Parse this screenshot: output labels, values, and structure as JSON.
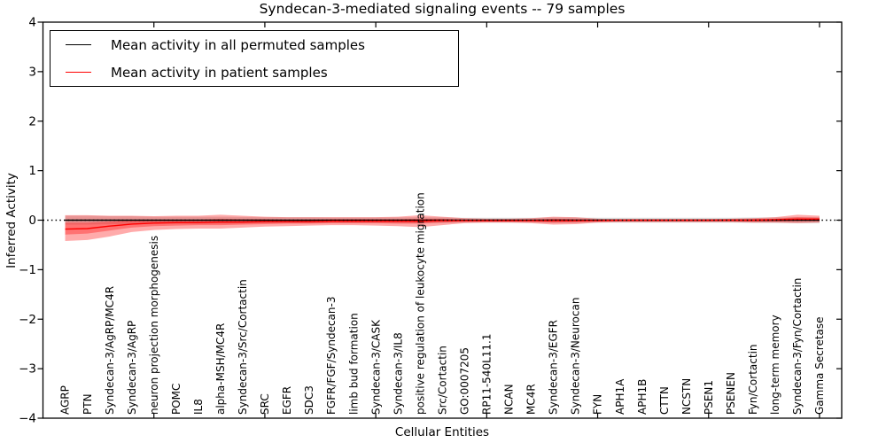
{
  "figure": {
    "title": "Syndecan-3-mediated signaling events -- 79 samples",
    "xlabel": "Cellular Entities",
    "ylabel": "Inferred Activity"
  },
  "legend": {
    "entries": [
      {
        "label": "Mean activity in all permuted samples",
        "color": "#000000"
      },
      {
        "label": "Mean activity in patient samples",
        "color": "#ff0000"
      }
    ]
  },
  "chart_data": {
    "type": "line",
    "title": "Syndecan-3-mediated signaling events -- 79 samples",
    "xlabel": "Cellular Entities",
    "ylabel": "Inferred Activity",
    "ylim": [
      -4,
      4
    ],
    "yticks": [
      4,
      3,
      2,
      1,
      0,
      -1,
      -2,
      -3,
      -4
    ],
    "grid": false,
    "legend_position": "upper left",
    "x_major_tick_every": 5,
    "zero_line": {
      "y": 0,
      "style": "dotted",
      "color": "#000000"
    },
    "categories": [
      "AGRP",
      "PTN",
      "Syndecan-3/AgRP/MC4R",
      "Syndecan-3/AgRP",
      "neuron projection morphogenesis",
      "POMC",
      "IL8",
      "alpha-MSH/MC4R",
      "Syndecan-3/Src/Cortactin",
      "SRC",
      "EGFR",
      "SDC3",
      "FGFR/FGF/Syndecan-3",
      "limb bud formation",
      "Syndecan-3/CASK",
      "Syndecan-3/IL8",
      "positive regulation of leukocyte migration",
      "Src/Cortactin",
      "GO:0007205",
      "RP11-540L11.1",
      "NCAN",
      "MC4R",
      "Syndecan-3/EGFR",
      "Syndecan-3/Neurocan",
      "FYN",
      "APH1A",
      "APH1B",
      "CTTN",
      "NCSTN",
      "PSEN1",
      "PSENEN",
      "Fyn/Cortactin",
      "long-term memory",
      "Syndecan-3/Fyn/Cortactin",
      "Gamma Secretase"
    ],
    "series": [
      {
        "name": "Mean activity in all permuted samples",
        "color": "#000000",
        "values": [
          0,
          0,
          0,
          0,
          0,
          0,
          0,
          0,
          0,
          0,
          0,
          0,
          0,
          0,
          0,
          0,
          0,
          0,
          0,
          0,
          0,
          0,
          0,
          0,
          0,
          0,
          0,
          0,
          0,
          0,
          0,
          0,
          0,
          0,
          0
        ]
      },
      {
        "name": "Mean activity in patient samples",
        "color": "#ff0000",
        "values": [
          -0.18,
          -0.17,
          -0.12,
          -0.08,
          -0.06,
          -0.05,
          -0.05,
          -0.04,
          -0.04,
          -0.03,
          -0.03,
          -0.03,
          -0.02,
          -0.02,
          -0.02,
          -0.02,
          -0.02,
          -0.01,
          -0.01,
          -0.01,
          -0.01,
          -0.01,
          -0.01,
          -0.01,
          -0.01,
          0,
          0,
          0,
          0,
          0,
          0,
          0,
          0.01,
          0.02,
          0.02
        ]
      }
    ],
    "bands": [
      {
        "name": "permuted-samples-band",
        "color": "#000000",
        "opacity": 0.13,
        "upper": [
          0.09,
          0.09,
          0.08,
          0.08,
          0.07,
          0.07,
          0.07,
          0.07,
          0.065,
          0.06,
          0.06,
          0.06,
          0.055,
          0.055,
          0.055,
          0.055,
          0.06,
          0.055,
          0.05,
          0.05,
          0.05,
          0.05,
          0.055,
          0.055,
          0.05,
          0.05,
          0.05,
          0.05,
          0.05,
          0.05,
          0.05,
          0.055,
          0.055,
          0.06,
          0.06
        ],
        "lower": [
          -0.09,
          -0.09,
          -0.08,
          -0.08,
          -0.07,
          -0.07,
          -0.07,
          -0.07,
          -0.065,
          -0.06,
          -0.06,
          -0.06,
          -0.055,
          -0.055,
          -0.055,
          -0.055,
          -0.06,
          -0.055,
          -0.05,
          -0.05,
          -0.05,
          -0.05,
          -0.055,
          -0.055,
          -0.05,
          -0.05,
          -0.05,
          -0.05,
          -0.05,
          -0.05,
          -0.05,
          -0.055,
          -0.055,
          -0.06,
          -0.06
        ]
      },
      {
        "name": "patient-samples-band-outer",
        "color": "#ff0000",
        "opacity": 0.33,
        "upper": [
          0.1,
          0.1,
          0.09,
          0.09,
          0.08,
          0.09,
          0.09,
          0.11,
          0.09,
          0.07,
          0.06,
          0.06,
          0.06,
          0.06,
          0.06,
          0.07,
          0.1,
          0.07,
          0.04,
          0.03,
          0.03,
          0.04,
          0.07,
          0.06,
          0.03,
          0.02,
          0.02,
          0.02,
          0.02,
          0.02,
          0.03,
          0.04,
          0.06,
          0.11,
          0.09
        ],
        "lower": [
          -0.42,
          -0.4,
          -0.33,
          -0.24,
          -0.2,
          -0.18,
          -0.17,
          -0.17,
          -0.15,
          -0.13,
          -0.12,
          -0.11,
          -0.1,
          -0.1,
          -0.11,
          -0.12,
          -0.14,
          -0.1,
          -0.06,
          -0.05,
          -0.05,
          -0.06,
          -0.09,
          -0.08,
          -0.05,
          -0.04,
          -0.04,
          -0.04,
          -0.04,
          -0.04,
          -0.04,
          -0.05,
          -0.05,
          -0.06,
          -0.05
        ]
      },
      {
        "name": "patient-samples-band-inner",
        "color": "#ff0000",
        "opacity": 0.33,
        "upper": [
          -0.05,
          -0.05,
          -0.03,
          0.0,
          0.0,
          0.01,
          0.01,
          0.03,
          0.02,
          0.02,
          0.01,
          0.01,
          0.02,
          0.02,
          0.02,
          0.02,
          0.03,
          0.03,
          0.01,
          0.01,
          0.01,
          0.01,
          0.03,
          0.02,
          0.01,
          0.01,
          0.01,
          0.01,
          0.01,
          0.01,
          0.01,
          0.02,
          0.03,
          0.06,
          0.05
        ],
        "lower": [
          -0.29,
          -0.27,
          -0.21,
          -0.15,
          -0.12,
          -0.11,
          -0.1,
          -0.1,
          -0.09,
          -0.08,
          -0.07,
          -0.07,
          -0.06,
          -0.06,
          -0.06,
          -0.07,
          -0.07,
          -0.05,
          -0.03,
          -0.03,
          -0.03,
          -0.03,
          -0.05,
          -0.04,
          -0.02,
          -0.02,
          -0.02,
          -0.02,
          -0.02,
          -0.02,
          -0.02,
          -0.03,
          -0.03,
          -0.02,
          -0.02
        ]
      }
    ]
  }
}
